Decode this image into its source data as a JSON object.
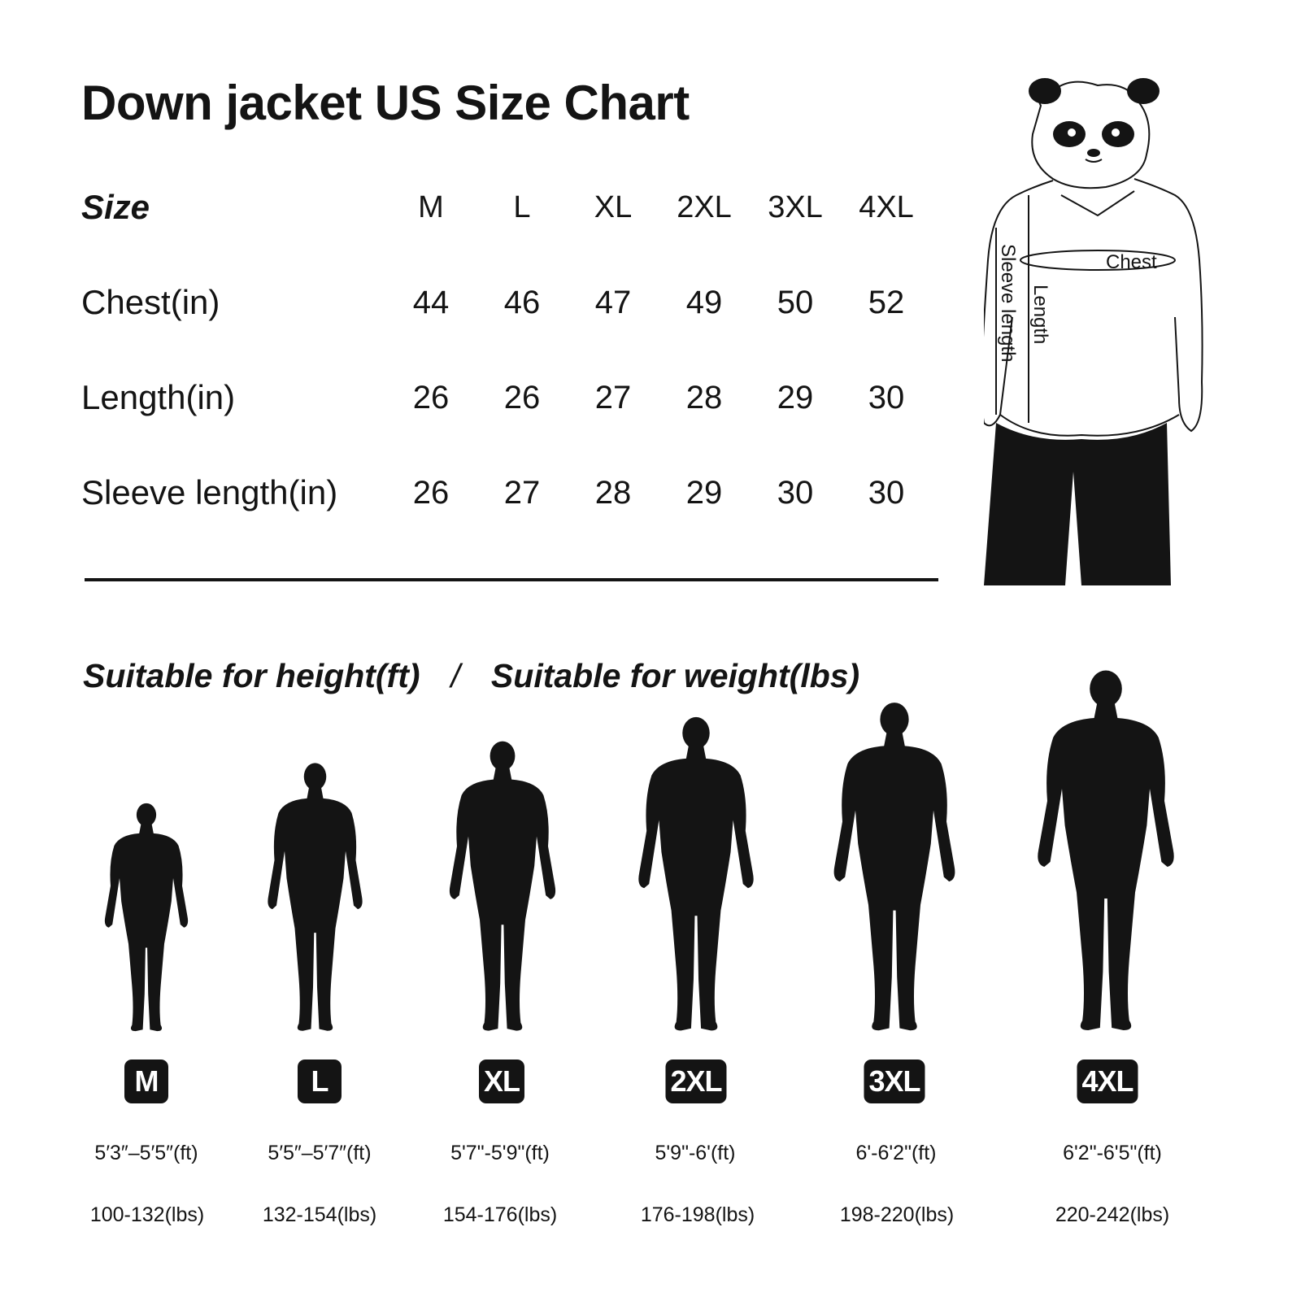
{
  "title": "Down jacket US Size Chart",
  "table": {
    "headers": {
      "label": "Size",
      "sizes": [
        "M",
        "L",
        "XL",
        "2XL",
        "3XL",
        "4XL"
      ]
    },
    "rows": [
      {
        "label": "Chest(in)",
        "values": [
          "44",
          "46",
          "47",
          "49",
          "50",
          "52"
        ]
      },
      {
        "label": "Length(in)",
        "values": [
          "26",
          "26",
          "27",
          "28",
          "29",
          "30"
        ]
      },
      {
        "label": "Sleeve length(in)",
        "values": [
          "26",
          "27",
          "28",
          "29",
          "30",
          "30"
        ]
      }
    ]
  },
  "illustration": {
    "labels": {
      "chest": "Chest",
      "length": "Length",
      "sleeve": "Sleeve length"
    }
  },
  "fit": {
    "height_heading": "Suitable for height(ft)",
    "separator": "/",
    "weight_heading": "Suitable for weight(lbs)",
    "items": [
      {
        "size": "M",
        "height": "5′3″–5′5″(ft)",
        "weight": "100-132(lbs)"
      },
      {
        "size": "L",
        "height": "5′5″–5′7″(ft)",
        "weight": "132-154(lbs)"
      },
      {
        "size": "XL",
        "height": "5'7\"-5'9\"(ft)",
        "weight": "154-176(lbs)"
      },
      {
        "size": "2XL",
        "height": "5'9\"-6'(ft)",
        "weight": "176-198(lbs)"
      },
      {
        "size": "3XL",
        "height": "6'-6'2\"(ft)",
        "weight": "198-220(lbs)"
      },
      {
        "size": "4XL",
        "height": "6'2\"-6'5\"(ft)",
        "weight": "220-242(lbs)"
      }
    ]
  },
  "colors": {
    "ink": "#141414",
    "background": "#ffffff",
    "badge_text": "#ffffff"
  }
}
